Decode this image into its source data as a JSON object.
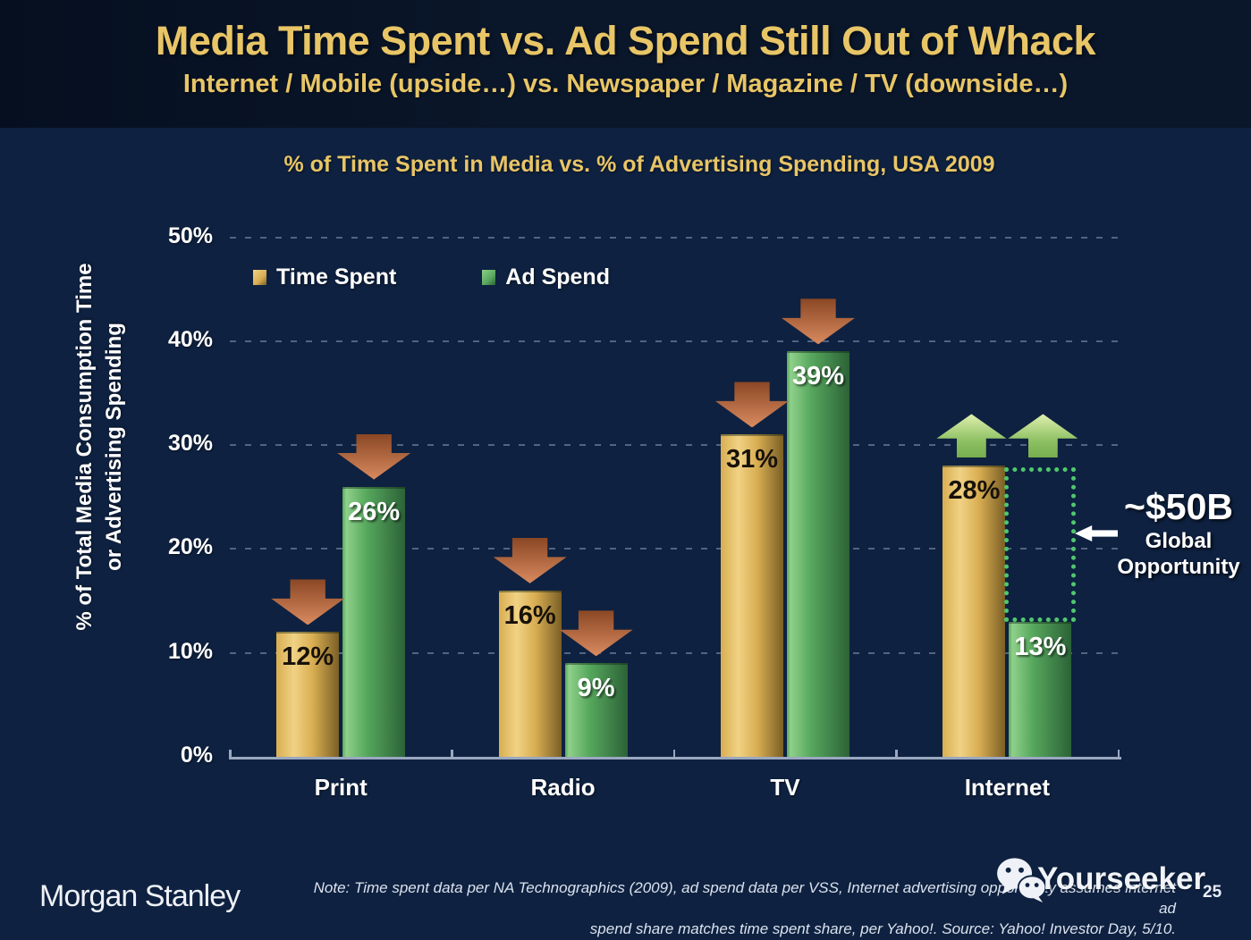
{
  "slide": {
    "title": "Media Time Spent vs. Ad Spend Still Out of Whack",
    "subtitle": "Internet / Mobile (upside…) vs. Newspaper / Magazine / TV (downside…)"
  },
  "chart": {
    "title": "% of Time Spent in Media vs. % of Advertising Spending, USA 2009",
    "y_axis_title_line1": "% of Total Media Consumption Time",
    "y_axis_title_line2": "or Advertising Spending"
  },
  "chart_data": {
    "type": "bar",
    "title": "% of Time Spent in Media vs. % of Advertising Spending, USA 2009",
    "xlabel": "",
    "ylabel": "% of Total Media Consumption Time or Advertising Spending",
    "ylim": [
      0,
      50
    ],
    "grid": "dashed-horizontal",
    "legend_position": "top-left",
    "categories": [
      "Print",
      "Radio",
      "TV",
      "Internet"
    ],
    "y_ticks": [
      {
        "label": "0%",
        "value": 0
      },
      {
        "label": "10%",
        "value": 10
      },
      {
        "label": "20%",
        "value": 20
      },
      {
        "label": "30%",
        "value": 30
      },
      {
        "label": "40%",
        "value": 40
      },
      {
        "label": "50%",
        "value": 50
      }
    ],
    "series": [
      {
        "name": "Time Spent",
        "values": [
          12,
          16,
          31,
          28
        ],
        "labels": [
          "12%",
          "16%",
          "31%",
          "28%"
        ],
        "arrows": [
          "down",
          "down",
          "down",
          "up"
        ],
        "label_color": "#17110a"
      },
      {
        "name": "Ad Spend",
        "values": [
          26,
          9,
          39,
          13
        ],
        "labels": [
          "26%",
          "9%",
          "39%",
          "13%"
        ],
        "arrows": [
          "down",
          "down",
          "down",
          "up"
        ],
        "label_color": "#ffffff"
      }
    ],
    "opportunity_box": {
      "category": "Internet",
      "category_index": 3,
      "top_value": 28,
      "bottom_value": 13
    }
  },
  "legend": {
    "items": [
      {
        "label": "Time Spent",
        "color": "#d9ae52"
      },
      {
        "label": "Ad Spend",
        "color": "#57a85e"
      }
    ]
  },
  "annotation": {
    "value": "~$50B",
    "line1": "Global",
    "line2": "Opportunity"
  },
  "footer": {
    "logo": "Morgan Stanley",
    "note_line1": "Note: Time spent data per NA Technographics (2009), ad spend data per VSS, Internet advertising opportunity assumes internet ad",
    "note_line2": "spend share matches time spent share, per Yahoo!. Source: Yahoo! Investor Day, 5/10.",
    "watermark": "Yourseeker",
    "page": "25"
  },
  "colors": {
    "background": "#0e2140",
    "header_background": "#0a1629",
    "accent_gold": "#e8c566",
    "bar_gold_light": "#f0d284",
    "bar_gold_mid": "#d9ae52",
    "bar_gold_dark": "#7a5f26",
    "bar_green_light": "#8fd08a",
    "bar_green_mid": "#57a85e",
    "bar_green_dark": "#2c6237",
    "arrow_red_top": "#8a4724",
    "arrow_red_bottom": "#d98a5f",
    "arrow_green_top": "#e2f0b0",
    "arrow_green_mid": "#8fc264",
    "arrow_green_bottom": "#76ad4e",
    "dotted_box_green": "#4fc86d",
    "axis_line": "#9aa8c0",
    "gridline": "rgba(198,208,226,0.38)",
    "text_white": "#ffffff"
  }
}
